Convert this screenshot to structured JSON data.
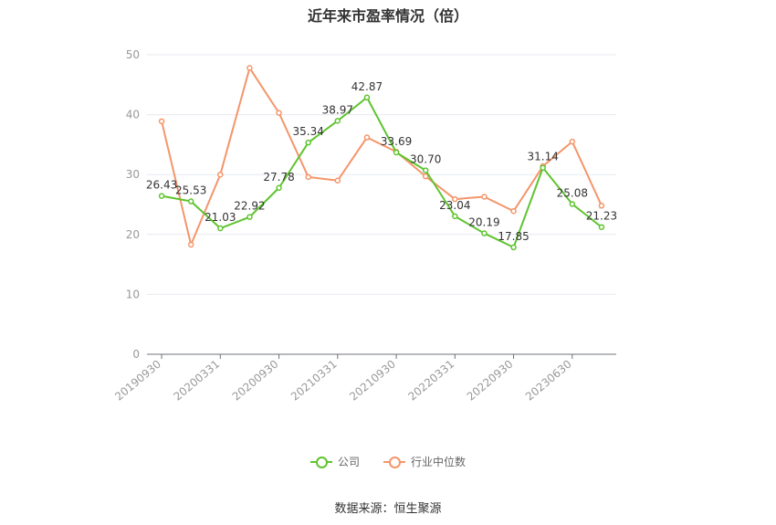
{
  "title": "近年来市盈率情况（倍）",
  "source": "数据来源：恒生聚源",
  "colors": {
    "company": "#5ec42e",
    "industry": "#f4956a",
    "axis": "#999999",
    "grid": "#e6e9f0"
  },
  "chart_data": {
    "type": "line",
    "title": "近年来市盈率情况（倍）",
    "xlabel": "",
    "ylabel": "",
    "ylim": [
      0,
      50
    ],
    "yticks": [
      0,
      10,
      20,
      30,
      40,
      50
    ],
    "grid": true,
    "legend_position": "bottom",
    "x": [
      "20190930",
      "20191231",
      "20200331",
      "20200630",
      "20200930",
      "20201231",
      "20210331",
      "20210630",
      "20210930",
      "20211231",
      "20220331",
      "20220630",
      "20220930",
      "20221231",
      "20230630",
      "20231231"
    ],
    "xtick_labels": [
      "20190930",
      "20200331",
      "20200930",
      "20210331",
      "20210930",
      "20220331",
      "20220930",
      "20230630"
    ],
    "series": [
      {
        "name": "公司",
        "color": "#5ec42e",
        "values": [
          26.43,
          25.53,
          21.03,
          22.92,
          27.78,
          35.34,
          38.97,
          42.87,
          33.69,
          30.7,
          23.04,
          20.19,
          17.85,
          31.14,
          25.08,
          21.23
        ],
        "labels": [
          "26.43",
          "25.53",
          "21.03",
          "22.92",
          "27.78",
          "35.34",
          "38.97",
          "42.87",
          "33.69",
          "30.70",
          "23.04",
          "20.19",
          "17.85",
          "31.14",
          "25.08",
          "21.23"
        ]
      },
      {
        "name": "行业中位数",
        "color": "#f4956a",
        "values": [
          38.9,
          18.3,
          30.0,
          47.8,
          40.3,
          29.6,
          29.0,
          36.2,
          33.8,
          29.7,
          25.9,
          26.3,
          23.9,
          31.4,
          35.5,
          24.8
        ]
      }
    ]
  }
}
